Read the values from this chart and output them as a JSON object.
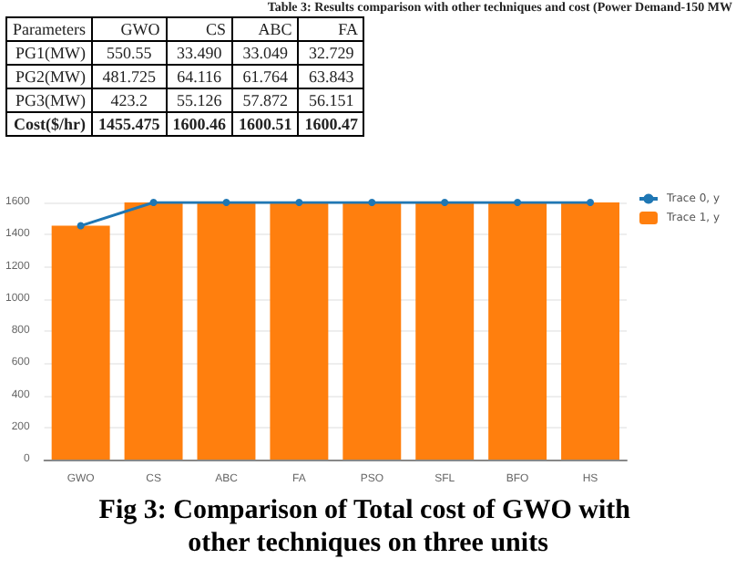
{
  "chart_data": [
    {
      "type": "other",
      "title": "Table 3: Results comparison with other techniques and cost (Power Demand-150 MW",
      "ylabel": "Parameters",
      "categories": [
        "GWO",
        "CS",
        "ABC",
        "FA"
      ],
      "y_categories": [
        "PG1(MW)",
        "PG2(MW)",
        "PG3(MW)",
        "Cost($/hr)"
      ],
      "cell_labels": [
        [
          "550.55",
          "33.490",
          "33.049",
          "32.729"
        ],
        [
          "481.725",
          "64.116",
          "61.764",
          "63.843"
        ],
        [
          "423.2",
          "55.126",
          "57.872",
          "56.151"
        ],
        [
          "1455.475",
          "1600.46",
          "1600.51",
          "1600.47"
        ]
      ]
    },
    {
      "type": "bar",
      "categories": [
        "GWO",
        "CS",
        "ABC",
        "FA",
        "PSO",
        "SFL",
        "BFO",
        "HS"
      ],
      "annotations": [
        "Fig 3: Comparison of Total cost of GWO with other techniques on three units"
      ],
      "series": [
        {
          "name": "Trace 0, y",
          "type": "line",
          "color": "#1f77b4",
          "values": [
            1455,
            1600,
            1600,
            1600,
            1600,
            1600,
            1600,
            1600
          ]
        },
        {
          "name": "Trace 1, y",
          "type": "bar",
          "color": "#ff7f0e",
          "values": [
            1455,
            1600,
            1600,
            1600,
            1600,
            1600,
            1600,
            1600
          ]
        }
      ],
      "ylim": [
        0,
        1600
      ],
      "yticks": [
        0,
        200,
        400,
        600,
        800,
        1000,
        1200,
        1400,
        1600
      ],
      "grid": "y",
      "legend": "top right",
      "marker": "circle"
    }
  ]
}
